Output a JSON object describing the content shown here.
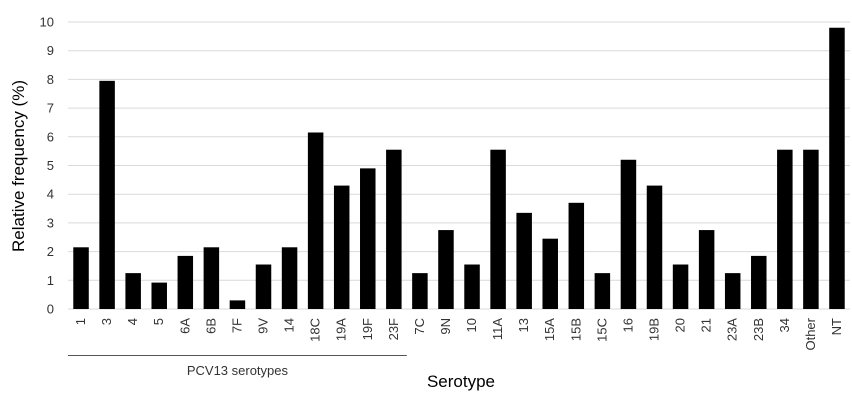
{
  "chart_data": {
    "type": "bar",
    "title": "",
    "xlabel": "Serotype",
    "ylabel": "Relative frequency (%)",
    "ylim": [
      0,
      10
    ],
    "yticks": [
      0,
      1,
      2,
      3,
      4,
      5,
      6,
      7,
      8,
      9,
      10
    ],
    "grid": true,
    "bar_color": "#000000",
    "grid_color": "#d9d9d9",
    "categories": [
      "1",
      "3",
      "4",
      "5",
      "6A",
      "6B",
      "7F",
      "9V",
      "14",
      "18C",
      "19A",
      "19F",
      "23F",
      "7C",
      "9N",
      "10",
      "11A",
      "13",
      "15A",
      "15B",
      "15C",
      "16",
      "19B",
      "20",
      "21",
      "23A",
      "23B",
      "34",
      "Other",
      "NT"
    ],
    "values": [
      2.15,
      7.95,
      1.25,
      0.92,
      1.85,
      2.15,
      0.3,
      1.55,
      2.15,
      6.15,
      4.3,
      4.9,
      5.55,
      1.25,
      2.75,
      1.55,
      5.55,
      3.35,
      2.45,
      3.7,
      1.25,
      5.2,
      4.3,
      1.55,
      2.75,
      1.25,
      1.85,
      5.55,
      5.55,
      9.8
    ],
    "groups": [
      {
        "label": "PCV13 serotypes",
        "start": 0,
        "end": 12
      }
    ]
  }
}
